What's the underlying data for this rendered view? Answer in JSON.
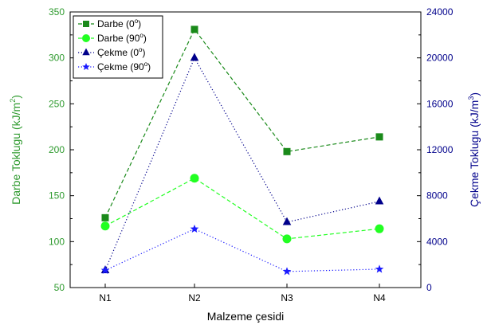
{
  "chart_data": {
    "type": "line",
    "categories": [
      "N1",
      "N2",
      "N3",
      "N4"
    ],
    "xlabel": "Malzeme çesidi",
    "ylabel_left_main": "Darbe Toklugu (kJ/m",
    "ylabel_left_sup": "2",
    "ylabel_left_end": ")",
    "ylabel_right_main": "Çekme Toklugu (kJ/m",
    "ylabel_right_sup": "3",
    "ylabel_right_end": ")",
    "ylim_left": [
      50,
      350
    ],
    "yticks_left": [
      50,
      100,
      150,
      200,
      250,
      300,
      350
    ],
    "ylim_right": [
      0,
      24000
    ],
    "yticks_right": [
      0,
      4000,
      8000,
      12000,
      16000,
      20000,
      24000
    ],
    "left_axis_color": "#2e9a2e",
    "right_axis_color": "#00008b",
    "legend_position": "top-left",
    "grid": false,
    "series": [
      {
        "name_main": "Darbe (0",
        "name_sup": "o",
        "name_end": ")",
        "axis": "left",
        "marker": "square",
        "line": "dashed",
        "color": "#1a8a1a",
        "values": [
          126,
          331,
          198,
          214
        ]
      },
      {
        "name_main": "Darbe (90",
        "name_sup": "o",
        "name_end": ")",
        "axis": "left",
        "marker": "circle",
        "line": "dashed",
        "color": "#22ff22",
        "values": [
          117,
          169,
          103,
          114
        ]
      },
      {
        "name_main": "Çekme (0",
        "name_sup": "o",
        "name_end": ")",
        "axis": "right",
        "marker": "triangle",
        "line": "dotted",
        "color": "#00008b",
        "values": [
          1500,
          20000,
          5700,
          7500
        ]
      },
      {
        "name_main": "Çekme (90",
        "name_sup": "o",
        "name_end": ")",
        "axis": "right",
        "marker": "star",
        "line": "dotted",
        "color": "#1a1aff",
        "values": [
          1500,
          5100,
          1400,
          1600
        ]
      }
    ]
  }
}
